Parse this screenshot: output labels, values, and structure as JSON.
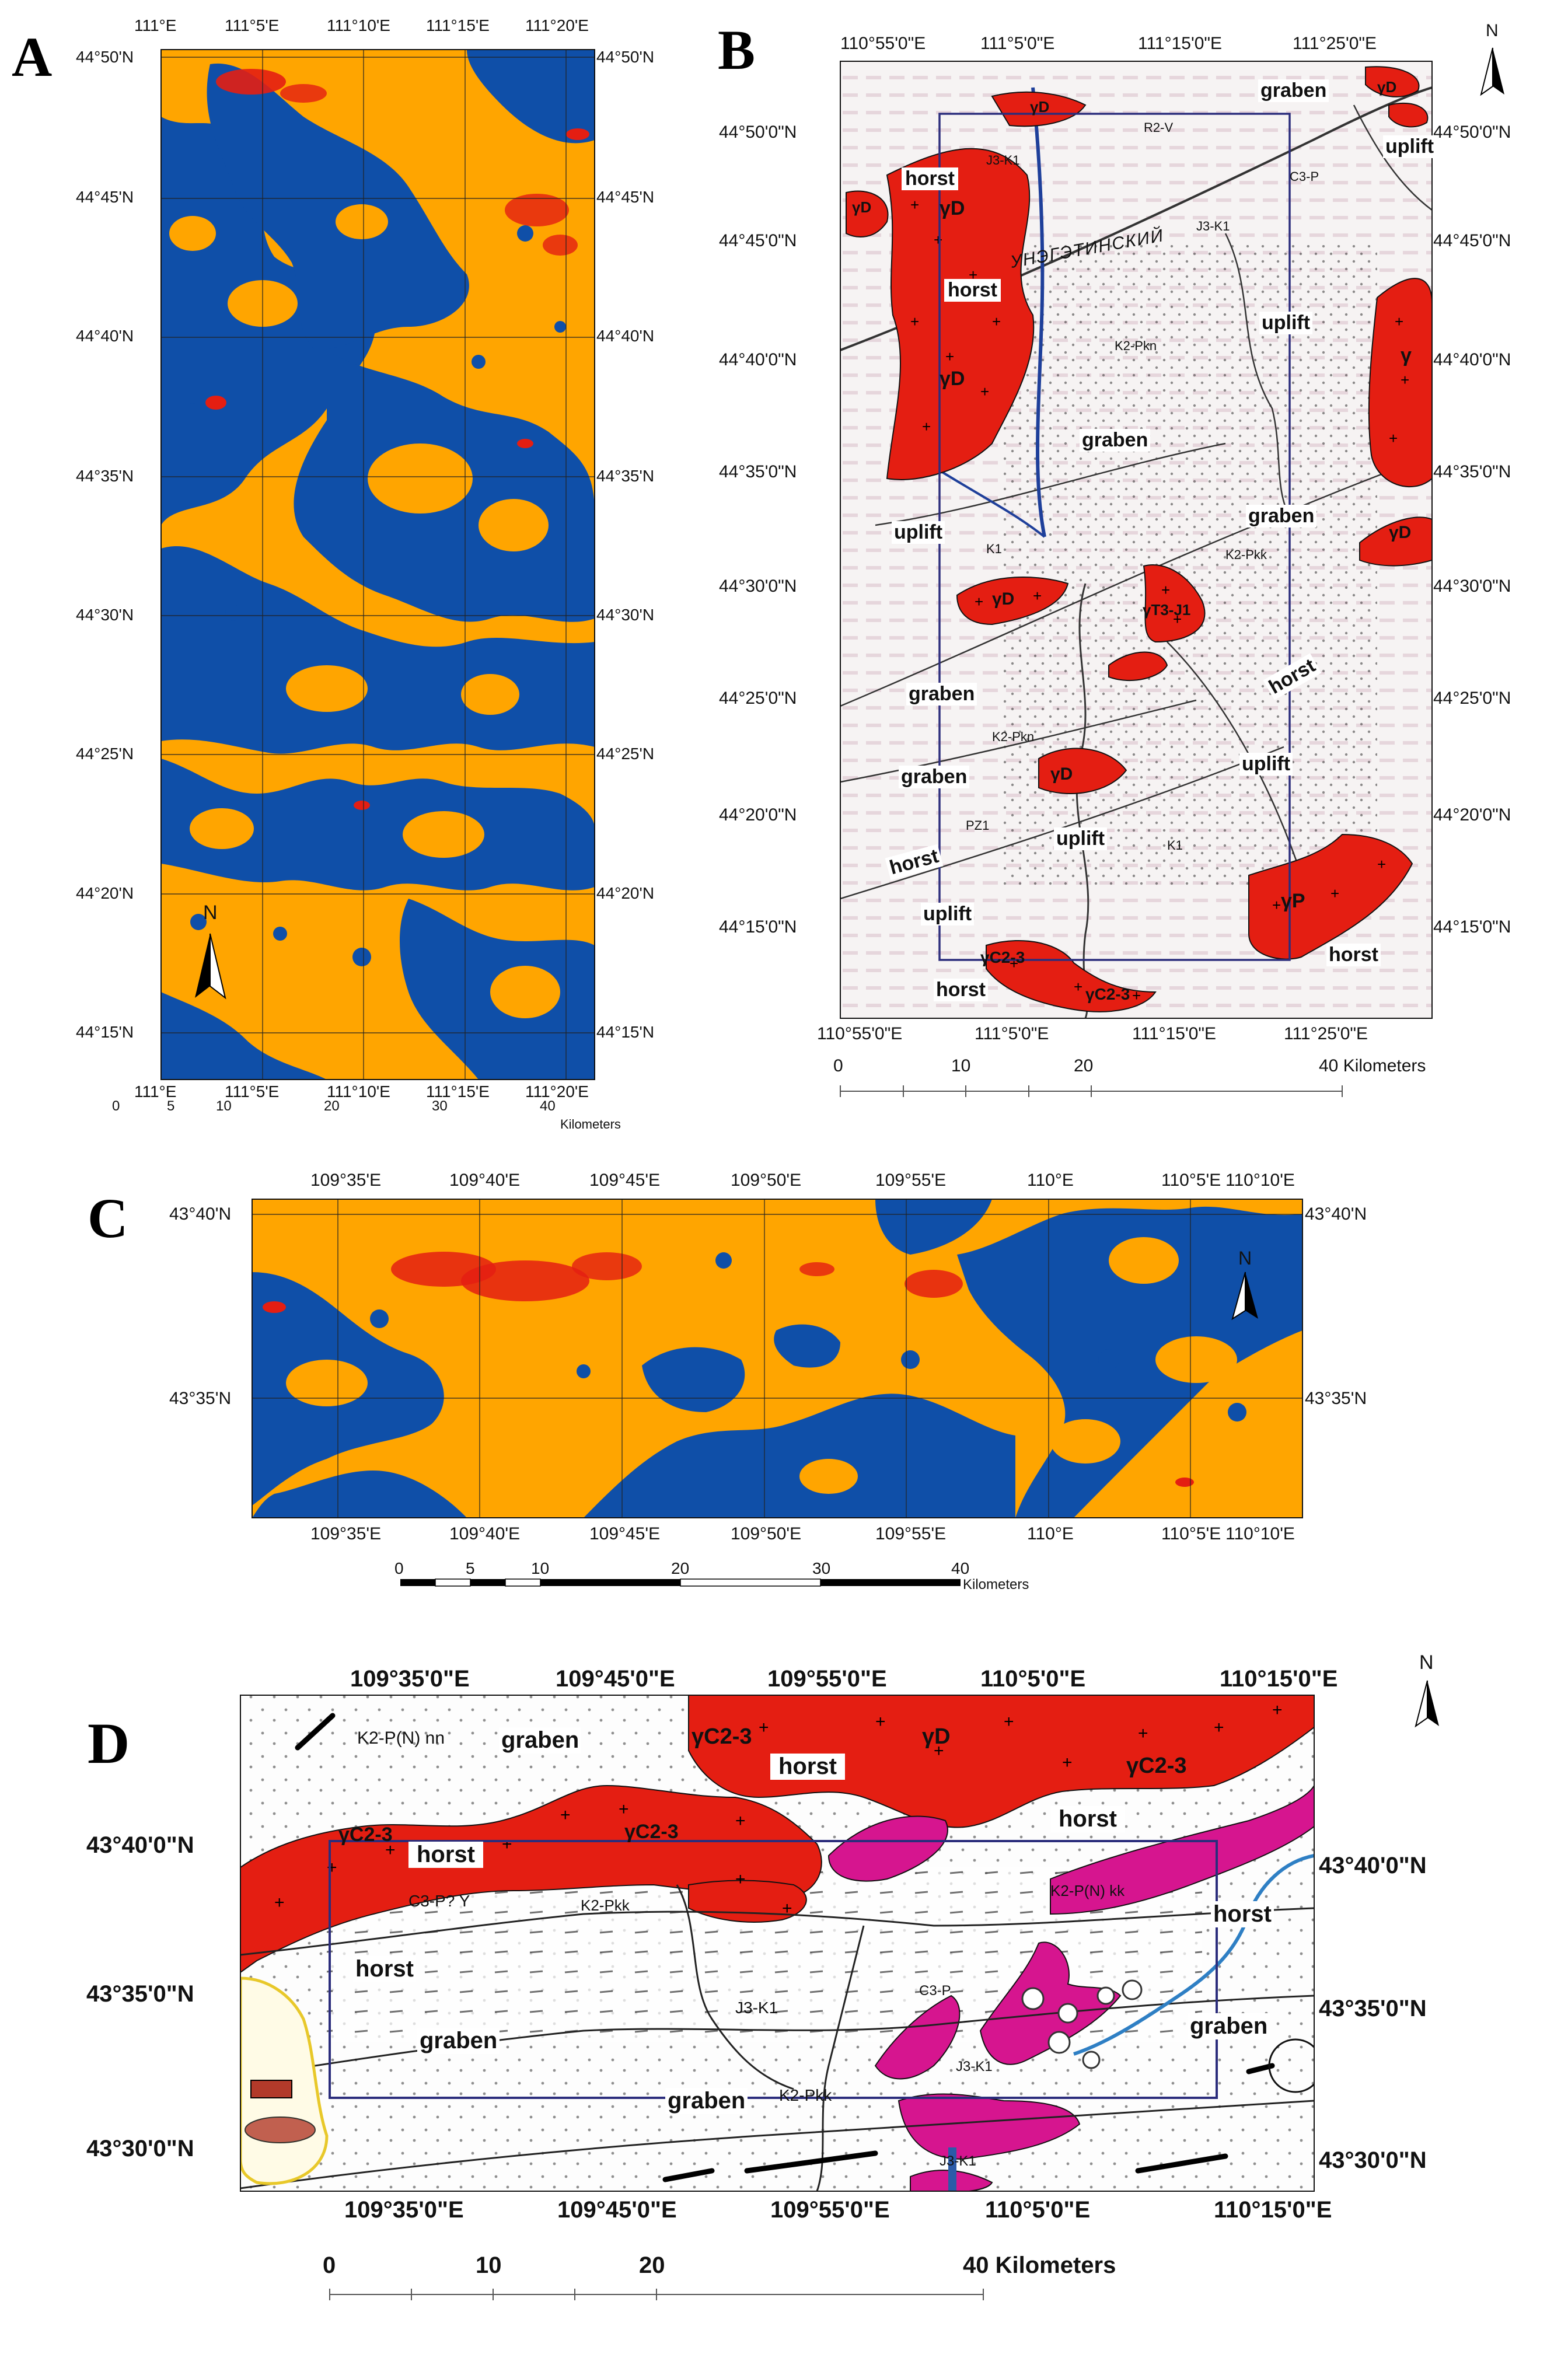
{
  "panels": {
    "A": {
      "letter": "A",
      "top_lon": [
        "111°E",
        "111°5'E",
        "111°10'E",
        "111°15'E",
        "111°20'E"
      ],
      "bottom_lon": [
        "111°E",
        "111°5'E",
        "111°10'E",
        "111°15'E",
        "111°20'E"
      ],
      "left_lat": [
        "44°50'N",
        "44°45'N",
        "44°40'N",
        "44°35'N",
        "44°30'N",
        "44°25'N",
        "44°20'N",
        "44°15'N"
      ],
      "right_lat": [
        "44°50'N",
        "44°45'N",
        "44°40'N",
        "44°35'N",
        "44°30'N",
        "44°25'N",
        "44°20'N",
        "44°15'N"
      ],
      "scale": [
        "0",
        "5",
        "10",
        "20",
        "30",
        "40"
      ],
      "scale_unit": "Kilometers",
      "north": "N"
    },
    "B": {
      "letter": "B",
      "top_lon": [
        "110°55'0\"E",
        "111°5'0\"E",
        "111°15'0\"E",
        "111°25'0\"E"
      ],
      "bottom_lon": [
        "110°55'0\"E",
        "111°5'0\"E",
        "111°15'0\"E",
        "111°25'0\"E"
      ],
      "left_lat": [
        "44°50'0\"N",
        "44°45'0\"N",
        "44°40'0\"N",
        "44°35'0\"N",
        "44°30'0\"N",
        "44°25'0\"N",
        "44°20'0\"N",
        "44°15'0\"N"
      ],
      "right_lat": [
        "44°50'0\"N",
        "44°45'0\"N",
        "44°40'0\"N",
        "44°35'0\"N",
        "44°30'0\"N",
        "44°25'0\"N",
        "44°20'0\"N",
        "44°15'0\"N"
      ],
      "scale": [
        "0",
        "10",
        "20",
        "40 Kilometers"
      ],
      "north": "N",
      "labels": {
        "graben1": "graben",
        "uplift1": "uplift",
        "horst1": "horst",
        "horst2": "horst",
        "uplift2": "uplift",
        "graben2": "graben",
        "graben3": "graben",
        "uplift3": "uplift",
        "graben4": "graben",
        "horst3": "horst",
        "graben5": "graben",
        "uplift4": "uplift",
        "uplift5": "uplift",
        "horst4": "horst",
        "uplift6": "uplift",
        "horst5": "horst",
        "horst6": "horst"
      },
      "intrusions": {
        "yD1": "γD",
        "yD2": "γD",
        "yD3": "γD",
        "yD4": "γD",
        "yD5": "γD",
        "yD6": "γD",
        "y1": "γ",
        "yP": "γP",
        "yT": "γT3-J1",
        "yC1": "γC2-3",
        "yC2": "γC2-3",
        "yD7": "γD"
      },
      "strat": {
        "s1": "J3-K1",
        "s2": "K2-Pkn",
        "s3": "K2-Pkk",
        "s4": "K1",
        "s5": "PZ1",
        "s6": "K2-Pkn",
        "s7": "K1",
        "s8": "C3-P",
        "s9": "R2-V",
        "s10": "J3-K1",
        "s11": "УНЭГЭТИНСКИЙ"
      }
    },
    "C": {
      "letter": "C",
      "top_lon": [
        "109°35'E",
        "109°40'E",
        "109°45'E",
        "109°50'E",
        "109°55'E",
        "110°E",
        "110°5'E",
        "110°10'E"
      ],
      "bottom_lon": [
        "109°35'E",
        "109°40'E",
        "109°45'E",
        "109°50'E",
        "109°55'E",
        "110°E",
        "110°5'E",
        "110°10'E"
      ],
      "left_lat": [
        "43°40'N",
        "43°35'N"
      ],
      "right_lat": [
        "43°40'N",
        "43°35'N"
      ],
      "scale": [
        "0",
        "5",
        "10",
        "20",
        "30",
        "40"
      ],
      "scale_unit": "Kilometers",
      "north": "N"
    },
    "D": {
      "letter": "D",
      "top_lon": [
        "109°35'0\"E",
        "109°45'0\"E",
        "109°55'0\"E",
        "110°5'0\"E",
        "110°15'0\"E"
      ],
      "bottom_lon": [
        "109°35'0\"E",
        "109°45'0\"E",
        "109°55'0\"E",
        "110°5'0\"E",
        "110°15'0\"E"
      ],
      "left_lat": [
        "43°40'0\"N",
        "43°35'0\"N",
        "43°30'0\"N"
      ],
      "right_lat": [
        "43°40'0\"N",
        "43°35'0\"N",
        "43°30'0\"N"
      ],
      "scale": [
        "0",
        "10",
        "20",
        "40 Kilometers"
      ],
      "north": "N",
      "labels": {
        "graben1": "graben",
        "horst1": "horst",
        "horst2": "horst",
        "horst3": "horst",
        "horst4": "horst",
        "horst5": "horst",
        "graben2": "graben",
        "graben3": "graben",
        "graben4": "graben"
      },
      "intrusions": {
        "yC1": "γC2-3",
        "yC2": "γC2-3",
        "yC3": "γC2-3",
        "yC4": "γC2-3",
        "yD": "γD"
      },
      "strat": {
        "s1": "K2-P(N) nn",
        "s2": "C3-P? Y",
        "s3": "K2-Pkk",
        "s4": "J3-K1",
        "s5": "C3-P",
        "s6": "J3-K1",
        "s7": "K2-Pkk",
        "s8": "J3-K1",
        "s9": "K2-P(N) kk"
      }
    }
  },
  "colors": {
    "orange": "#FFA500",
    "blue": "#0F4FA8",
    "red": "#E41E12",
    "magenta": "#D6158F",
    "box": "#2B2D7C"
  }
}
